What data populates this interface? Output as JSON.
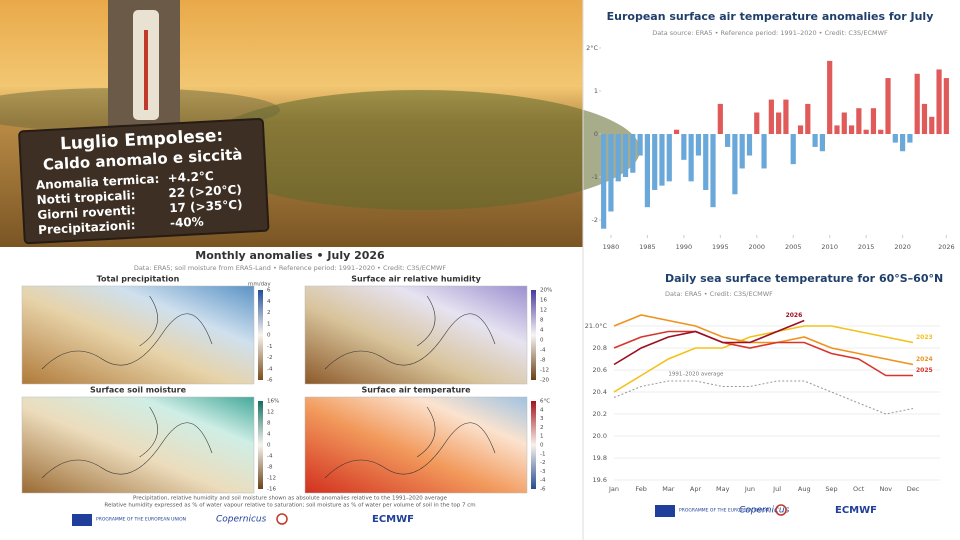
{
  "photo": {
    "sign": {
      "title": [
        "Luglio Empolese:",
        "Caldo anomalo e siccità"
      ],
      "rows": [
        {
          "label": "Anomalia termica:",
          "value": "+4.2°C"
        },
        {
          "label": "Notti tropicali:",
          "value": "22 (>20°C)"
        },
        {
          "label": "Giorni roventi:",
          "value": "17 (>35°C)"
        },
        {
          "label": "Precipitazioni:",
          "value": "-40%"
        }
      ]
    }
  },
  "chart_data": [
    {
      "type": "bar",
      "title": "European surface air temperature anomalies for July",
      "subtitle": "Data source: ERA5 • Reference period: 1991–2020 • Credit: C3S/ECMWF",
      "x": [
        1979,
        1980,
        1981,
        1982,
        1983,
        1984,
        1985,
        1986,
        1987,
        1988,
        1989,
        1990,
        1991,
        1992,
        1993,
        1994,
        1995,
        1996,
        1997,
        1998,
        1999,
        2000,
        2001,
        2002,
        2003,
        2004,
        2005,
        2006,
        2007,
        2008,
        2009,
        2010,
        2011,
        2012,
        2013,
        2014,
        2015,
        2016,
        2017,
        2018,
        2019,
        2020,
        2021,
        2022,
        2023,
        2024,
        2025,
        2026
      ],
      "values": [
        -2.2,
        -1.8,
        -1.1,
        -1.0,
        -0.9,
        -0.5,
        -1.7,
        -1.3,
        -1.2,
        -1.1,
        0.1,
        -0.6,
        -1.1,
        -0.5,
        -1.3,
        -1.7,
        0.7,
        -0.3,
        -1.4,
        -0.8,
        -0.5,
        0.5,
        -0.8,
        0.8,
        0.5,
        0.8,
        -0.7,
        0.2,
        0.7,
        -0.3,
        -0.4,
        1.7,
        0.2,
        0.5,
        0.2,
        0.6,
        0.1,
        0.6,
        0.1,
        1.3,
        -0.2,
        -0.4,
        -0.2,
        1.4,
        0.7,
        0.4,
        1.5,
        1.3
      ],
      "positive_color": "#e05a5a",
      "negative_color": "#6aa8da",
      "xlim": [
        1978.5,
        2026.5
      ],
      "xticks": [
        1980,
        1985,
        1990,
        1995,
        2000,
        2005,
        2010,
        2015,
        2020,
        2026
      ],
      "ylim": [
        -2.3,
        2.15
      ],
      "yticks": [
        {
          "value": 2,
          "label": "2°C"
        },
        1,
        0,
        -1,
        -2
      ]
    },
    {
      "type": "line",
      "title": "Daily sea surface temperature for 60°S–60°N",
      "subtitle": "Data: ERA5 • Credit: C3S/ECMWF",
      "categories": [
        "Jan",
        "Feb",
        "Mar",
        "Apr",
        "May",
        "Jun",
        "Jul",
        "Aug",
        "Sep",
        "Oct",
        "Nov",
        "Dec"
      ],
      "series": [
        {
          "name": "1991–2020 average",
          "color": "#999999",
          "dashed": true,
          "values": [
            20.35,
            20.45,
            20.5,
            20.5,
            20.45,
            20.45,
            20.5,
            20.5,
            20.4,
            20.3,
            20.2,
            20.25
          ]
        },
        {
          "name": "2023",
          "color": "#f2c21b",
          "values": [
            20.4,
            20.55,
            20.7,
            20.8,
            20.8,
            20.9,
            20.95,
            21.0,
            21.0,
            20.95,
            20.9,
            20.85
          ]
        },
        {
          "name": "2024",
          "color": "#f0921e",
          "values": [
            21.0,
            21.1,
            21.05,
            21.0,
            20.9,
            20.85,
            20.85,
            20.9,
            20.8,
            20.75,
            20.7,
            20.65
          ]
        },
        {
          "name": "2025",
          "color": "#d9342b",
          "values": [
            20.8,
            20.9,
            20.95,
            20.95,
            20.85,
            20.8,
            20.85,
            20.85,
            20.75,
            20.7,
            20.55,
            20.55
          ]
        },
        {
          "name": "2026",
          "color": "#9b1020",
          "values": [
            20.65,
            20.8,
            20.9,
            20.95,
            20.85,
            20.85,
            20.95,
            21.05,
            null,
            null,
            null,
            null
          ]
        }
      ],
      "ylim": [
        19.6,
        21.15
      ],
      "yticks": [
        {
          "value": 21,
          "label": "21.0°C"
        },
        20.8,
        20.6,
        20.4,
        20.2,
        {
          "value": 20,
          "label": "20.0"
        },
        19.8,
        19.6
      ],
      "grid": true
    }
  ],
  "maps_panel": {
    "title": "Monthly anomalies • July 2026",
    "subtitle": "Data: ERA5; soil moisture from ERA5-Land • Reference period: 1991–2020 • Credit: C3S/ECMWF",
    "panels": [
      {
        "title": "Total precipitation",
        "unit": "mm/day",
        "scale": [
          "6",
          "4",
          "2",
          "1",
          "0",
          "-1",
          "-2",
          "-4",
          "-6"
        ]
      },
      {
        "title": "Surface air relative humidity",
        "scale": [
          "20%",
          "16",
          "12",
          "8",
          "4",
          "0",
          "-4",
          "-8",
          "-12",
          "-20"
        ]
      },
      {
        "title": "Surface soil moisture",
        "scale": [
          "16%",
          "12",
          "8",
          "4",
          "0",
          "-4",
          "-8",
          "-12",
          "-16"
        ]
      },
      {
        "title": "Surface air temperature",
        "scale": [
          "6°C",
          "4",
          "3",
          "2",
          "1",
          "0",
          "-1",
          "-2",
          "-3",
          "-4",
          "-6"
        ]
      }
    ],
    "notes": [
      "Precipitation, relative humidity and soil moisture shown as absolute anomalies relative to the 1991–2020 average",
      "Relative humidity expressed as % of water vapour relative to saturation; soil moisture as % of water per volume of soil in the top 7 cm"
    ]
  },
  "logos": [
    "PROGRAMME OF THE EUROPEAN UNION",
    "Copernicus",
    "ECMWF"
  ]
}
